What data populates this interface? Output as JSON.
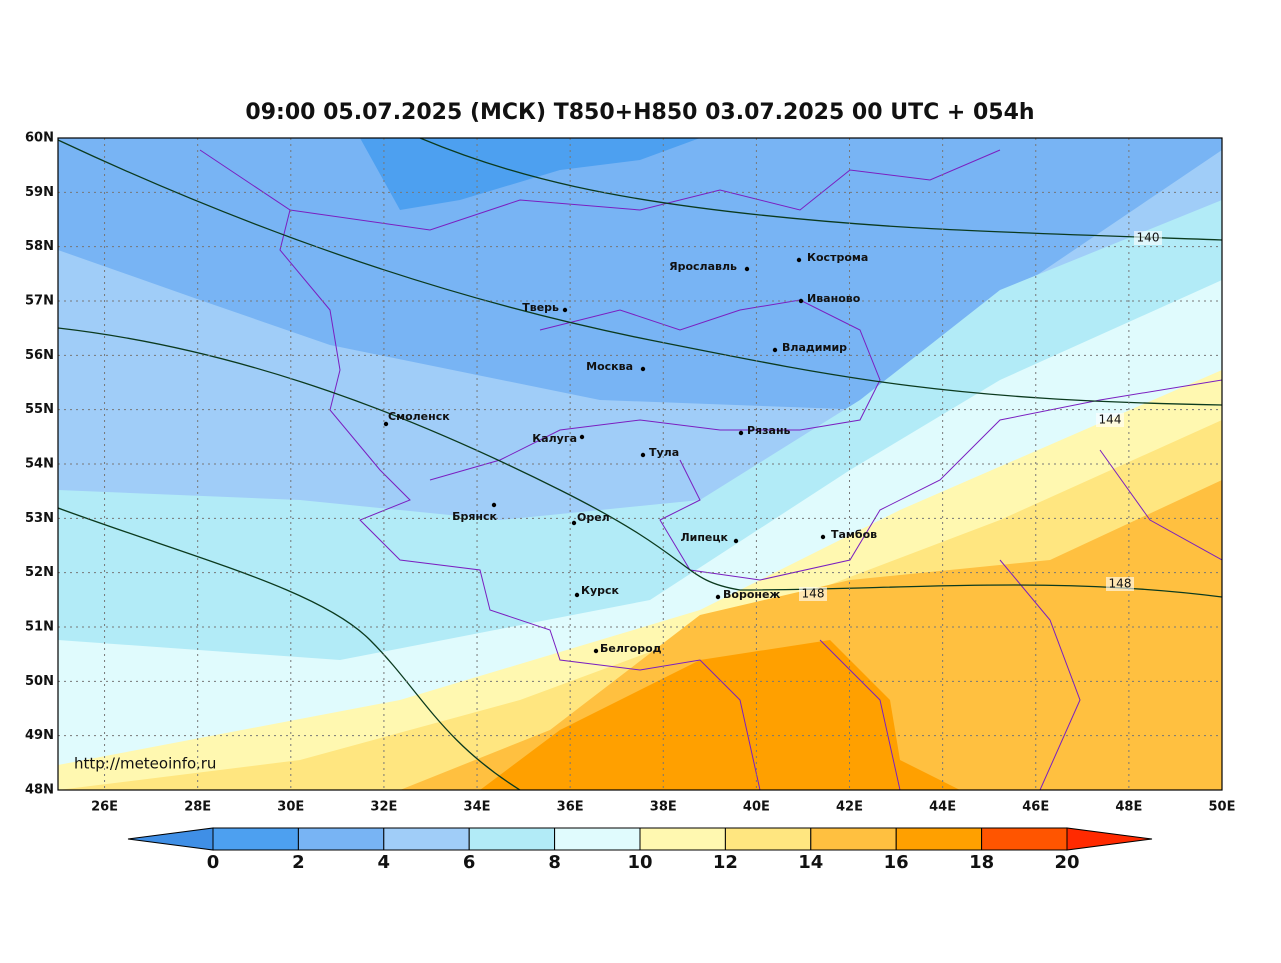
{
  "map": {
    "title": "09:00 05.07.2025 (МСК) T850+H850 03.07.2025 00 UTC + 054h",
    "watermark": "http://meteoinfo.ru",
    "xlim": [
      25,
      50
    ],
    "ylim": [
      48,
      60
    ],
    "xticks": [
      {
        "value": 26,
        "label": "26E"
      },
      {
        "value": 28,
        "label": "28E"
      },
      {
        "value": 30,
        "label": "30E"
      },
      {
        "value": 32,
        "label": "32E"
      },
      {
        "value": 34,
        "label": "34E"
      },
      {
        "value": 36,
        "label": "36E"
      },
      {
        "value": 38,
        "label": "38E"
      },
      {
        "value": 40,
        "label": "40E"
      },
      {
        "value": 42,
        "label": "42E"
      },
      {
        "value": 44,
        "label": "44E"
      },
      {
        "value": 46,
        "label": "46E"
      },
      {
        "value": 48,
        "label": "48E"
      },
      {
        "value": 50,
        "label": "50E"
      }
    ],
    "yticks": [
      {
        "value": 48,
        "label": "48N"
      },
      {
        "value": 49,
        "label": "49N"
      },
      {
        "value": 50,
        "label": "50N"
      },
      {
        "value": 51,
        "label": "51N"
      },
      {
        "value": 52,
        "label": "52N"
      },
      {
        "value": 53,
        "label": "53N"
      },
      {
        "value": 54,
        "label": "54N"
      },
      {
        "value": 55,
        "label": "55N"
      },
      {
        "value": 56,
        "label": "56N"
      },
      {
        "value": 57,
        "label": "57N"
      },
      {
        "value": 58,
        "label": "58N"
      },
      {
        "value": 59,
        "label": "59N"
      },
      {
        "value": 60,
        "label": "60N"
      }
    ],
    "cities": [
      "Кострома",
      "Ярославль",
      "Иваново",
      "Тверь",
      "Владимир",
      "Москва",
      "Смоленск",
      "Калуга",
      "Рязань",
      "Тула",
      "Брянск",
      "Орел",
      "Липецк",
      "Тамбов",
      "Курск",
      "Воронеж",
      "Белгород"
    ],
    "contour_labels": [
      "140",
      "144",
      "148",
      "148"
    ],
    "colorbar": {
      "ticks": [
        0,
        2,
        4,
        6,
        8,
        10,
        12,
        14,
        16,
        18,
        20
      ],
      "colors": [
        "#3f8fe6",
        "#4da0f0",
        "#78b4f4",
        "#a0cdf8",
        "#b2ebf7",
        "#e0fbfd",
        "#fff8b0",
        "#ffe680",
        "#ffc040",
        "#ffa000",
        "#ff5500",
        "#ff2a00"
      ]
    }
  }
}
